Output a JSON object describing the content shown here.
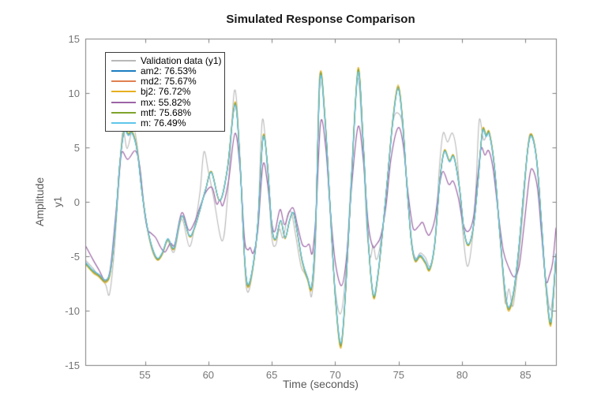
{
  "window": {
    "background": "#ffffff"
  },
  "chart_data": {
    "type": "line",
    "title": "Simulated Response Comparison",
    "xlabel": "Time (seconds)",
    "ylabel": "Amplitude",
    "ylabel_channel": "y1",
    "xlim": [
      50.3,
      87.4
    ],
    "ylim": [
      -15,
      15
    ],
    "xticks": [
      55,
      60,
      65,
      70,
      75,
      80,
      85
    ],
    "yticks": [
      -15,
      -10,
      -5,
      0,
      5,
      10,
      15
    ],
    "grid": false,
    "legend_position": "upper-left",
    "axis_color": "#808080",
    "tick_label_color": "#757575",
    "label_color": "#595959",
    "title_color": "#1a1a1a",
    "models_base": [
      [
        50.35,
        -5.6
      ],
      [
        50.9,
        -6.3
      ],
      [
        51.4,
        -6.7
      ],
      [
        51.9,
        -7.2
      ],
      [
        52.3,
        -6.2
      ],
      [
        52.7,
        -1.8
      ],
      [
        53.0,
        3.2
      ],
      [
        53.35,
        6.4
      ],
      [
        53.7,
        6.1
      ],
      [
        54.0,
        6.3
      ],
      [
        54.4,
        4.6
      ],
      [
        54.8,
        0.6
      ],
      [
        55.2,
        -2.4
      ],
      [
        55.6,
        -4.3
      ],
      [
        56.0,
        -5.2
      ],
      [
        56.4,
        -4.6
      ],
      [
        56.8,
        -3.4
      ],
      [
        57.3,
        -4.2
      ],
      [
        57.9,
        -1.3
      ],
      [
        58.5,
        -3.1
      ],
      [
        58.9,
        -2.4
      ],
      [
        59.3,
        -0.9
      ],
      [
        59.8,
        1.2
      ],
      [
        60.25,
        2.7
      ],
      [
        60.9,
        0.1
      ],
      [
        61.5,
        3.0
      ],
      [
        62.1,
        8.9
      ],
      [
        62.5,
        3.5
      ],
      [
        62.85,
        -5.0
      ],
      [
        63.1,
        -7.6
      ],
      [
        63.5,
        -6.0
      ],
      [
        63.9,
        -2.0
      ],
      [
        64.3,
        5.8
      ],
      [
        64.65,
        3.5
      ],
      [
        65.0,
        -2.2
      ],
      [
        65.3,
        -3.4
      ],
      [
        65.7,
        -1.7
      ],
      [
        66.05,
        -3.3
      ],
      [
        66.4,
        -1.7
      ],
      [
        66.7,
        -1.0
      ],
      [
        67.0,
        -2.7
      ],
      [
        67.4,
        -5.4
      ],
      [
        67.8,
        -6.9
      ],
      [
        68.15,
        -7.7
      ],
      [
        68.45,
        -2.5
      ],
      [
        68.8,
        11.2
      ],
      [
        69.2,
        7.5
      ],
      [
        69.6,
        -0.5
      ],
      [
        70.0,
        -8.5
      ],
      [
        70.45,
        -13.0
      ],
      [
        70.85,
        -7.5
      ],
      [
        71.3,
        2.5
      ],
      [
        71.8,
        11.9
      ],
      [
        72.2,
        5.5
      ],
      [
        72.6,
        -3.5
      ],
      [
        73.0,
        -8.5
      ],
      [
        73.35,
        -6.8
      ],
      [
        73.75,
        -2.5
      ],
      [
        74.15,
        2.5
      ],
      [
        74.55,
        7.5
      ],
      [
        74.95,
        10.4
      ],
      [
        75.3,
        7.5
      ],
      [
        75.65,
        1.5
      ],
      [
        76.0,
        -3.6
      ],
      [
        76.3,
        -5.3
      ],
      [
        76.7,
        -4.9
      ],
      [
        77.1,
        -5.5
      ],
      [
        77.45,
        -6.1
      ],
      [
        77.85,
        -3.8
      ],
      [
        78.25,
        2.0
      ],
      [
        78.6,
        4.6
      ],
      [
        79.0,
        3.7
      ],
      [
        79.35,
        4.1
      ],
      [
        79.8,
        1.2
      ],
      [
        80.15,
        -2.6
      ],
      [
        80.5,
        -3.9
      ],
      [
        80.9,
        -2.2
      ],
      [
        81.25,
        1.8
      ],
      [
        81.6,
        6.4
      ],
      [
        81.9,
        6.0
      ],
      [
        82.15,
        6.2
      ],
      [
        82.55,
        3.2
      ],
      [
        82.95,
        -2.5
      ],
      [
        83.35,
        -7.8
      ],
      [
        83.65,
        -9.7
      ],
      [
        84.05,
        -8.3
      ],
      [
        84.45,
        -4.5
      ],
      [
        84.85,
        0.8
      ],
      [
        85.2,
        5.0
      ],
      [
        85.5,
        6.0
      ],
      [
        85.9,
        3.6
      ],
      [
        86.25,
        -1.8
      ],
      [
        86.6,
        -7.5
      ],
      [
        87.0,
        -11.0
      ],
      [
        87.4,
        -4.8
      ]
    ],
    "series": [
      {
        "name": "validation",
        "label": "Validation data (y1)",
        "color": "#b8b8b8",
        "width": 1.1,
        "points": [
          [
            50.35,
            -5.4
          ],
          [
            50.9,
            -6.1
          ],
          [
            51.4,
            -6.9
          ],
          [
            51.9,
            -7.6
          ],
          [
            52.2,
            -8.5
          ],
          [
            52.55,
            -5.0
          ],
          [
            52.9,
            1.0
          ],
          [
            53.25,
            6.5
          ],
          [
            53.6,
            4.9
          ],
          [
            54.05,
            6.8
          ],
          [
            54.35,
            5.5
          ],
          [
            54.75,
            1.5
          ],
          [
            55.15,
            -2.2
          ],
          [
            55.55,
            -4.4
          ],
          [
            55.95,
            -5.3
          ],
          [
            56.35,
            -4.9
          ],
          [
            56.8,
            -3.6
          ],
          [
            57.3,
            -4.6
          ],
          [
            57.9,
            -1.6
          ],
          [
            58.5,
            -4.1
          ],
          [
            58.95,
            -2.0
          ],
          [
            59.35,
            1.0
          ],
          [
            59.65,
            4.6
          ],
          [
            60.0,
            2.8
          ],
          [
            60.4,
            0.5
          ],
          [
            61.1,
            -3.6
          ],
          [
            61.55,
            1.0
          ],
          [
            62.05,
            10.2
          ],
          [
            62.45,
            5.0
          ],
          [
            62.85,
            -5.5
          ],
          [
            63.1,
            -8.3
          ],
          [
            63.5,
            -6.3
          ],
          [
            63.9,
            -2.0
          ],
          [
            64.25,
            7.5
          ],
          [
            64.65,
            3.0
          ],
          [
            65.0,
            -3.2
          ],
          [
            65.3,
            -4.0
          ],
          [
            65.6,
            -2.5
          ],
          [
            65.9,
            -3.3
          ],
          [
            66.25,
            -1.2
          ],
          [
            66.55,
            -1.0
          ],
          [
            66.9,
            -3.2
          ],
          [
            67.3,
            -5.9
          ],
          [
            67.6,
            -6.6
          ],
          [
            67.9,
            -7.4
          ],
          [
            68.15,
            -8.6
          ],
          [
            68.45,
            -3.8
          ],
          [
            68.75,
            11.4
          ],
          [
            69.15,
            8.0
          ],
          [
            69.55,
            0.0
          ],
          [
            69.95,
            -7.5
          ],
          [
            70.4,
            -10.3
          ],
          [
            70.8,
            -7.0
          ],
          [
            71.25,
            2.0
          ],
          [
            71.75,
            11.3
          ],
          [
            72.15,
            5.8
          ],
          [
            72.5,
            -2.5
          ],
          [
            72.75,
            -5.1
          ],
          [
            73.0,
            -4.0
          ],
          [
            73.25,
            -5.3
          ],
          [
            73.6,
            -3.6
          ],
          [
            74.0,
            0.5
          ],
          [
            74.4,
            6.0
          ],
          [
            74.65,
            7.9
          ],
          [
            75.0,
            8.1
          ],
          [
            75.3,
            7.0
          ],
          [
            75.65,
            1.5
          ],
          [
            76.05,
            -3.8
          ],
          [
            76.35,
            -5.2
          ],
          [
            76.7,
            -4.7
          ],
          [
            77.1,
            -5.1
          ],
          [
            77.5,
            -5.9
          ],
          [
            77.9,
            -3.0
          ],
          [
            78.2,
            3.0
          ],
          [
            78.5,
            6.3
          ],
          [
            78.85,
            5.5
          ],
          [
            79.25,
            6.3
          ],
          [
            79.6,
            4.2
          ],
          [
            80.0,
            -2.0
          ],
          [
            80.4,
            -5.9
          ],
          [
            80.8,
            -3.5
          ],
          [
            81.1,
            1.5
          ],
          [
            81.35,
            7.5
          ],
          [
            81.7,
            5.7
          ],
          [
            82.1,
            6.3
          ],
          [
            82.5,
            3.5
          ],
          [
            82.9,
            -2.0
          ],
          [
            83.3,
            -8.0
          ],
          [
            83.45,
            -9.4
          ],
          [
            83.7,
            -8.0
          ],
          [
            84.0,
            -9.6
          ],
          [
            84.35,
            -6.5
          ],
          [
            84.75,
            -1.5
          ],
          [
            85.2,
            5.2
          ],
          [
            85.45,
            6.1
          ],
          [
            85.85,
            4.0
          ],
          [
            86.2,
            -1.5
          ],
          [
            86.6,
            -7.2
          ],
          [
            87.0,
            -9.9
          ],
          [
            87.4,
            -5.2
          ]
        ]
      },
      {
        "name": "am2",
        "label": "am2: 76.53%",
        "color": "#1a7dc0",
        "width": 1.1,
        "base": "models",
        "scale": 1.0
      },
      {
        "name": "md2",
        "label": "md2: 75.67%",
        "color": "#e08050",
        "width": 1.1,
        "base": "models",
        "scale": 1.01
      },
      {
        "name": "bj2",
        "label": "bj2: 76.72%",
        "color": "#e7b01f",
        "width": 1.1,
        "base": "models",
        "scale": 1.035
      },
      {
        "name": "mx",
        "label": "mx: 55.82%",
        "color": "#9c64a6",
        "width": 1.2,
        "points": [
          [
            50.35,
            -4.1
          ],
          [
            50.9,
            -5.3
          ],
          [
            51.4,
            -6.3
          ],
          [
            51.85,
            -7.2
          ],
          [
            52.25,
            -6.3
          ],
          [
            52.65,
            -1.8
          ],
          [
            53.0,
            2.8
          ],
          [
            53.2,
            4.6
          ],
          [
            53.65,
            3.9
          ],
          [
            54.25,
            4.7
          ],
          [
            54.6,
            3.2
          ],
          [
            54.95,
            -0.8
          ],
          [
            55.2,
            -2.5
          ],
          [
            55.5,
            -2.9
          ],
          [
            55.85,
            -3.3
          ],
          [
            56.25,
            -4.2
          ],
          [
            56.6,
            -4.6
          ],
          [
            57.0,
            -3.8
          ],
          [
            57.35,
            -3.9
          ],
          [
            57.9,
            -1.0
          ],
          [
            58.45,
            -2.6
          ],
          [
            58.9,
            -1.9
          ],
          [
            59.3,
            -0.6
          ],
          [
            59.8,
            0.9
          ],
          [
            60.3,
            1.3
          ],
          [
            60.65,
            -0.2
          ],
          [
            60.9,
            0.2
          ],
          [
            61.15,
            -0.3
          ],
          [
            61.6,
            2.0
          ],
          [
            62.1,
            6.3
          ],
          [
            62.5,
            3.0
          ],
          [
            62.85,
            -3.4
          ],
          [
            63.1,
            -4.4
          ],
          [
            63.3,
            -4.2
          ],
          [
            63.55,
            -4.7
          ],
          [
            63.9,
            -2.6
          ],
          [
            64.3,
            3.4
          ],
          [
            64.65,
            1.8
          ],
          [
            65.0,
            -1.9
          ],
          [
            65.25,
            -2.7
          ],
          [
            65.65,
            -0.7
          ],
          [
            66.0,
            -2.1
          ],
          [
            66.35,
            -1.0
          ],
          [
            66.7,
            -0.6
          ],
          [
            67.05,
            -2.3
          ],
          [
            67.4,
            -3.9
          ],
          [
            67.7,
            -4.1
          ],
          [
            67.95,
            -3.9
          ],
          [
            68.2,
            -4.7
          ],
          [
            68.5,
            -0.8
          ],
          [
            68.85,
            7.3
          ],
          [
            69.25,
            5.0
          ],
          [
            69.6,
            -0.5
          ],
          [
            70.0,
            -5.5
          ],
          [
            70.5,
            -7.7
          ],
          [
            70.9,
            -5.0
          ],
          [
            71.3,
            1.5
          ],
          [
            71.8,
            6.9
          ],
          [
            72.2,
            4.0
          ],
          [
            72.6,
            -2.0
          ],
          [
            72.95,
            -4.1
          ],
          [
            73.25,
            -3.9
          ],
          [
            73.6,
            -3.1
          ],
          [
            74.0,
            -0.4
          ],
          [
            74.4,
            4.0
          ],
          [
            74.95,
            6.8
          ],
          [
            75.35,
            5.3
          ],
          [
            75.7,
            1.2
          ],
          [
            76.05,
            -1.9
          ],
          [
            76.25,
            -2.6
          ],
          [
            76.6,
            -2.2
          ],
          [
            76.9,
            -1.9
          ],
          [
            77.2,
            -2.8
          ],
          [
            77.45,
            -3.0
          ],
          [
            77.85,
            -1.6
          ],
          [
            78.2,
            1.4
          ],
          [
            78.5,
            2.8
          ],
          [
            78.95,
            1.6
          ],
          [
            79.3,
            1.9
          ],
          [
            79.7,
            0.4
          ],
          [
            80.1,
            -2.1
          ],
          [
            80.5,
            -2.7
          ],
          [
            80.9,
            -1.4
          ],
          [
            81.2,
            2.0
          ],
          [
            81.5,
            4.9
          ],
          [
            81.8,
            4.3
          ],
          [
            82.1,
            4.7
          ],
          [
            82.45,
            3.0
          ],
          [
            82.85,
            -1.0
          ],
          [
            83.25,
            -4.5
          ],
          [
            83.7,
            -6.1
          ],
          [
            84.1,
            -6.9
          ],
          [
            84.5,
            -5.9
          ],
          [
            84.9,
            -2.0
          ],
          [
            85.3,
            2.2
          ],
          [
            85.55,
            3.0
          ],
          [
            85.95,
            1.2
          ],
          [
            86.25,
            -2.8
          ],
          [
            86.6,
            -7.2
          ],
          [
            86.9,
            -6.7
          ],
          [
            87.15,
            -5.5
          ],
          [
            87.4,
            -2.4
          ]
        ]
      },
      {
        "name": "mtf",
        "label": "mtf: 75.68%",
        "color": "#7fa32c",
        "width": 1.1,
        "base": "models",
        "scale": 1.02
      },
      {
        "name": "m",
        "label": "m: 76.49%",
        "color": "#5ec6ea",
        "width": 1.3,
        "base": "models",
        "scale": 1.0
      }
    ]
  }
}
